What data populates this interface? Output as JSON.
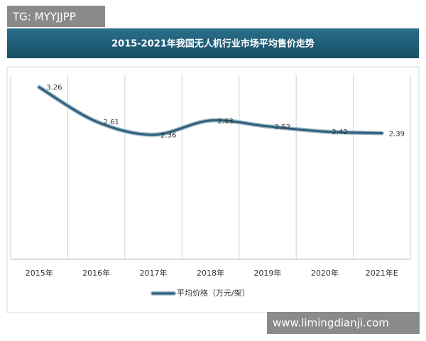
{
  "chart_data": {
    "type": "line",
    "title": "2015-2021年我国无人机行业市场平均售价走势",
    "categories": [
      "2015年",
      "2016年",
      "2017年",
      "2018年",
      "2019年",
      "2020年",
      "2021年E"
    ],
    "series": [
      {
        "name": "平均价格（万元/架）",
        "color": "#2c5f7c",
        "values": [
          3.26,
          2.61,
          2.36,
          2.63,
          2.52,
          2.42,
          2.39
        ]
      }
    ],
    "ylim": [
      0,
      3.5
    ],
    "smooth": true,
    "legend": "bottom"
  },
  "watermarks": [
    "TG: MYYJJPP",
    "www.limingdianji.com"
  ]
}
